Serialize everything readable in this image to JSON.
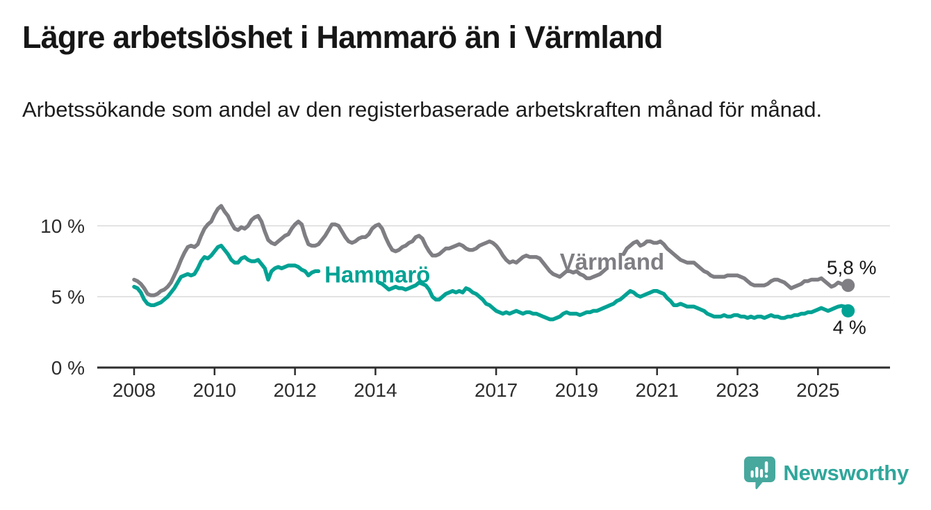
{
  "title": "Lägre arbetslöshet i Hammarö än i Värmland",
  "subtitle": "Arbetssökande som andel av den registerbaserade arbetskraften månad för månad.",
  "branding": {
    "name": "Newsworthy",
    "icon": "chart-speech-bubble-icon",
    "icon_color": "#47a89e",
    "text_color": "#2fa69b"
  },
  "chart_data": {
    "type": "line",
    "title": "Lägre arbetslöshet i Hammarö än i Värmland",
    "subtitle": "Arbetssökande som andel av den registerbaserade arbetskraften månad för månad.",
    "unit": "%",
    "frequency": "monthly",
    "start_year": 2008,
    "start_month": 1,
    "end_year": 2025,
    "end_month": 10,
    "grid": "horizontal",
    "legend": "inline-line-labels",
    "ylim": [
      0,
      12
    ],
    "y_ticks": [
      {
        "label": "0 %",
        "value": 0
      },
      {
        "label": "5 %",
        "value": 5
      },
      {
        "label": "10 %",
        "value": 10
      }
    ],
    "x_ticks": [
      {
        "label": "2008",
        "year": 2008
      },
      {
        "label": "2010",
        "year": 2010
      },
      {
        "label": "2012",
        "year": 2012
      },
      {
        "label": "2014",
        "year": 2014
      },
      {
        "label": "2017",
        "year": 2017
      },
      {
        "label": "2019",
        "year": 2019
      },
      {
        "label": "2021",
        "year": 2021
      },
      {
        "label": "2023",
        "year": 2023
      },
      {
        "label": "2025",
        "year": 2025
      }
    ],
    "series": [
      {
        "id": "varmland",
        "name": "Värmland",
        "color": "#7e7e83",
        "end_label": "5,8 %",
        "end_value": 5.8,
        "end_label_placement": "above",
        "label_gap": [
          142,
          145
        ],
        "label_at": {
          "index": 127,
          "value": 7.45
        },
        "values": [
          6.2,
          6.1,
          5.9,
          5.6,
          5.2,
          5.1,
          5.1,
          5.2,
          5.4,
          5.5,
          5.7,
          6.0,
          6.5,
          7.0,
          7.6,
          8.1,
          8.5,
          8.6,
          8.5,
          8.7,
          9.3,
          9.8,
          10.1,
          10.3,
          10.8,
          11.2,
          11.4,
          11.0,
          10.7,
          10.2,
          9.8,
          9.7,
          9.9,
          9.8,
          10.0,
          10.4,
          10.6,
          10.7,
          10.3,
          9.6,
          9.0,
          8.8,
          8.7,
          8.9,
          9.1,
          9.3,
          9.4,
          9.8,
          10.1,
          10.3,
          10.1,
          9.3,
          8.7,
          8.6,
          8.6,
          8.7,
          9.0,
          9.3,
          9.7,
          10.1,
          10.1,
          10.0,
          9.6,
          9.2,
          8.9,
          8.8,
          8.9,
          9.1,
          9.2,
          9.2,
          9.4,
          9.8,
          10.0,
          10.1,
          9.8,
          9.2,
          8.7,
          8.3,
          8.2,
          8.3,
          8.5,
          8.6,
          8.8,
          8.9,
          9.2,
          9.3,
          9.1,
          8.6,
          8.2,
          7.9,
          7.9,
          8.0,
          8.2,
          8.4,
          8.4,
          8.5,
          8.6,
          8.7,
          8.6,
          8.4,
          8.3,
          8.3,
          8.4,
          8.6,
          8.7,
          8.8,
          8.9,
          8.8,
          8.6,
          8.3,
          7.9,
          7.6,
          7.4,
          7.5,
          7.4,
          7.6,
          7.8,
          7.9,
          7.8,
          7.8,
          7.8,
          7.7,
          7.4,
          7.1,
          6.8,
          6.6,
          6.5,
          6.4,
          6.6,
          6.8,
          6.8,
          6.7,
          6.8,
          6.6,
          6.5,
          6.3,
          6.3,
          6.4,
          6.5,
          6.6,
          6.8,
          7.0,
          7.2,
          7.3,
          7.3,
          7.5,
          8.0,
          8.4,
          8.6,
          8.8,
          8.9,
          8.6,
          8.7,
          8.9,
          8.9,
          8.8,
          8.8,
          8.9,
          8.7,
          8.4,
          8.2,
          8.0,
          7.8,
          7.6,
          7.5,
          7.4,
          7.4,
          7.4,
          7.2,
          7.0,
          6.8,
          6.7,
          6.5,
          6.4,
          6.4,
          6.4,
          6.4,
          6.5,
          6.5,
          6.5,
          6.5,
          6.4,
          6.3,
          6.1,
          5.9,
          5.8,
          5.8,
          5.8,
          5.8,
          5.9,
          6.1,
          6.2,
          6.2,
          6.1,
          6.0,
          5.8,
          5.6,
          5.7,
          5.8,
          5.9,
          6.1,
          6.1,
          6.2,
          6.2,
          6.2,
          6.3,
          6.1,
          5.9,
          5.7,
          5.8,
          6.0,
          5.9,
          5.8,
          5.8
        ]
      },
      {
        "id": "hammaro",
        "name": "Hammarö",
        "color": "#00a294",
        "end_label": "4 %",
        "end_value": 4.0,
        "end_label_placement": "below",
        "label_gap": [
          56,
          72
        ],
        "label_at": {
          "index": 56.8,
          "value": 6.55
        },
        "values": [
          5.7,
          5.6,
          5.3,
          4.8,
          4.5,
          4.4,
          4.4,
          4.5,
          4.6,
          4.8,
          5.0,
          5.3,
          5.6,
          6.0,
          6.4,
          6.5,
          6.6,
          6.5,
          6.6,
          7.0,
          7.5,
          7.8,
          7.7,
          7.9,
          8.2,
          8.5,
          8.6,
          8.3,
          8.0,
          7.6,
          7.4,
          7.4,
          7.7,
          7.8,
          7.6,
          7.5,
          7.5,
          7.6,
          7.3,
          7.0,
          6.2,
          6.8,
          7.0,
          7.1,
          7.0,
          7.1,
          7.2,
          7.2,
          7.2,
          7.1,
          6.9,
          6.8,
          6.5,
          6.7,
          6.8,
          6.8,
          6.7,
          6.7,
          6.6,
          6.6,
          6.6,
          6.6,
          6.5,
          6.4,
          6.2,
          6.1,
          6.1,
          6.1,
          6.2,
          6.2,
          6.1,
          6.0,
          6.0,
          6.0,
          5.9,
          5.7,
          5.5,
          5.6,
          5.7,
          5.6,
          5.6,
          5.5,
          5.6,
          5.7,
          5.8,
          6.0,
          5.9,
          5.8,
          5.5,
          5.0,
          4.8,
          4.8,
          5.0,
          5.2,
          5.3,
          5.4,
          5.3,
          5.4,
          5.3,
          5.6,
          5.5,
          5.3,
          5.2,
          5.0,
          4.8,
          4.5,
          4.4,
          4.2,
          4.0,
          3.9,
          3.8,
          3.9,
          3.8,
          3.9,
          4.0,
          3.9,
          3.8,
          3.9,
          3.9,
          3.8,
          3.8,
          3.7,
          3.6,
          3.5,
          3.4,
          3.4,
          3.5,
          3.6,
          3.8,
          3.9,
          3.8,
          3.8,
          3.8,
          3.7,
          3.8,
          3.9,
          3.9,
          4.0,
          4.0,
          4.1,
          4.2,
          4.3,
          4.4,
          4.5,
          4.7,
          4.8,
          5.0,
          5.2,
          5.4,
          5.3,
          5.1,
          5.0,
          5.1,
          5.2,
          5.3,
          5.4,
          5.4,
          5.3,
          5.2,
          4.9,
          4.7,
          4.4,
          4.4,
          4.5,
          4.4,
          4.3,
          4.3,
          4.3,
          4.2,
          4.1,
          4.0,
          3.8,
          3.7,
          3.6,
          3.6,
          3.6,
          3.7,
          3.6,
          3.6,
          3.7,
          3.7,
          3.6,
          3.6,
          3.5,
          3.6,
          3.5,
          3.6,
          3.6,
          3.5,
          3.6,
          3.7,
          3.6,
          3.6,
          3.5,
          3.5,
          3.6,
          3.6,
          3.7,
          3.7,
          3.8,
          3.8,
          3.9,
          3.9,
          4.0,
          4.1,
          4.2,
          4.1,
          4.0,
          4.1,
          4.2,
          4.3,
          4.35,
          4.3,
          4.0
        ]
      }
    ]
  }
}
